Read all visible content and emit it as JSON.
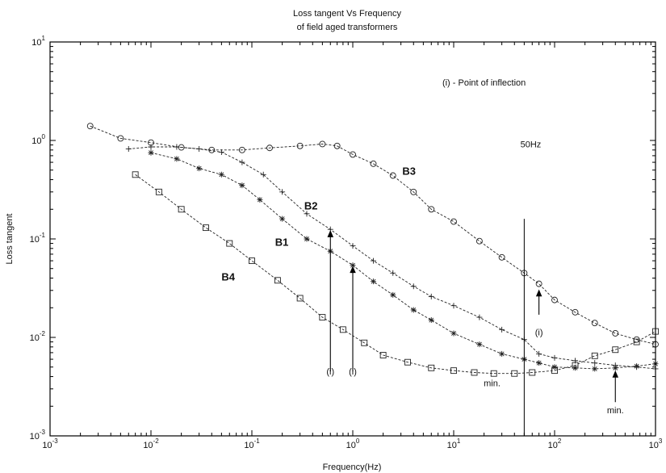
{
  "chart_data": {
    "type": "line",
    "title": "Loss tangent Vs Frequency",
    "subtitle": "of field aged transformers",
    "xlabel": "Frequency(Hz)",
    "ylabel": "Loss tangent",
    "x_scale": "log",
    "y_scale": "log",
    "xlim": [
      0.001,
      1000
    ],
    "ylim": [
      0.001,
      10
    ],
    "x_ticks": [
      0.001,
      0.01,
      0.1,
      1,
      10,
      100,
      1000
    ],
    "y_ticks": [
      0.001,
      0.01,
      0.1,
      1,
      10
    ],
    "x_tick_labels": [
      {
        "base": "10",
        "exp": "-3"
      },
      {
        "base": "10",
        "exp": "-2"
      },
      {
        "base": "10",
        "exp": "-1"
      },
      {
        "base": "10",
        "exp": "0"
      },
      {
        "base": "10",
        "exp": "1"
      },
      {
        "base": "10",
        "exp": "2"
      },
      {
        "base": "10",
        "exp": "3"
      }
    ],
    "y_tick_labels": [
      {
        "base": "10",
        "exp": "-3"
      },
      {
        "base": "10",
        "exp": "-2"
      },
      {
        "base": "10",
        "exp": "-1"
      },
      {
        "base": "10",
        "exp": "0"
      },
      {
        "base": "10",
        "exp": "1"
      }
    ],
    "grid": false,
    "series": [
      {
        "name": "B3",
        "marker": "circle",
        "x": [
          0.0025,
          0.005,
          0.01,
          0.02,
          0.04,
          0.08,
          0.15,
          0.3,
          0.5,
          0.7,
          1.0,
          1.6,
          2.5,
          4,
          6,
          10,
          18,
          30,
          50,
          70,
          100,
          160,
          250,
          400,
          650,
          1000
        ],
        "y": [
          1.4,
          1.05,
          0.95,
          0.85,
          0.8,
          0.8,
          0.84,
          0.88,
          0.92,
          0.88,
          0.72,
          0.58,
          0.44,
          0.3,
          0.2,
          0.15,
          0.095,
          0.065,
          0.045,
          0.035,
          0.024,
          0.018,
          0.014,
          0.011,
          0.0095,
          0.0085
        ]
      },
      {
        "name": "B2",
        "marker": "plus",
        "x": [
          0.006,
          0.01,
          0.018,
          0.03,
          0.05,
          0.08,
          0.13,
          0.2,
          0.35,
          0.6,
          1.0,
          1.6,
          2.5,
          4,
          6,
          10,
          18,
          30,
          50,
          70,
          100,
          160,
          250,
          400,
          650,
          1000
        ],
        "y": [
          0.82,
          0.86,
          0.86,
          0.82,
          0.76,
          0.6,
          0.45,
          0.3,
          0.18,
          0.125,
          0.085,
          0.06,
          0.045,
          0.033,
          0.026,
          0.021,
          0.016,
          0.012,
          0.0095,
          0.0068,
          0.0062,
          0.0058,
          0.0055,
          0.0052,
          0.005,
          0.0048
        ]
      },
      {
        "name": "B1",
        "marker": "star",
        "x": [
          0.01,
          0.018,
          0.03,
          0.05,
          0.08,
          0.12,
          0.2,
          0.35,
          0.6,
          1.0,
          1.6,
          2.5,
          4,
          6,
          10,
          18,
          30,
          50,
          70,
          100,
          160,
          250,
          400,
          650,
          1000
        ],
        "y": [
          0.75,
          0.65,
          0.52,
          0.45,
          0.35,
          0.25,
          0.16,
          0.1,
          0.075,
          0.054,
          0.037,
          0.027,
          0.019,
          0.015,
          0.011,
          0.0085,
          0.0068,
          0.006,
          0.0055,
          0.005,
          0.0049,
          0.0048,
          0.0049,
          0.0051,
          0.0054
        ]
      },
      {
        "name": "B4",
        "marker": "square",
        "x": [
          0.007,
          0.012,
          0.02,
          0.035,
          0.06,
          0.1,
          0.18,
          0.3,
          0.5,
          0.8,
          1.3,
          2,
          3.5,
          6,
          10,
          16,
          25,
          40,
          60,
          100,
          160,
          250,
          400,
          650,
          1000
        ],
        "y": [
          0.45,
          0.3,
          0.2,
          0.13,
          0.09,
          0.06,
          0.038,
          0.025,
          0.016,
          0.012,
          0.0088,
          0.0066,
          0.0056,
          0.0049,
          0.0046,
          0.0044,
          0.0043,
          0.0043,
          0.0044,
          0.0046,
          0.0052,
          0.0065,
          0.0075,
          0.009,
          0.0115
        ]
      }
    ],
    "series_labels": [
      {
        "text": "B3",
        "x": 3.1,
        "y": 0.45
      },
      {
        "text": "B2",
        "x": 0.33,
        "y": 0.2
      },
      {
        "text": "B1",
        "x": 0.17,
        "y": 0.085
      },
      {
        "text": "B4",
        "x": 0.05,
        "y": 0.038
      }
    ],
    "annotations": [
      {
        "text": "(i) - Point of inflection",
        "x": 20,
        "y": 3.6
      },
      {
        "text": "50Hz",
        "x": 58,
        "y": 0.85
      },
      {
        "text": "(i)",
        "x": 0.6,
        "y": 0.0042
      },
      {
        "text": "(i)",
        "x": 1.0,
        "y": 0.0042
      },
      {
        "text": "(i)",
        "x": 70,
        "y": 0.0105
      },
      {
        "text": "min.",
        "x": 24,
        "y": 0.0032
      },
      {
        "text": "min.",
        "x": 400,
        "y": 0.0017
      }
    ],
    "arrows": [
      {
        "x": 0.6,
        "y_from": 0.0045,
        "y_to": 0.12
      },
      {
        "x": 1.0,
        "y_from": 0.0045,
        "y_to": 0.052
      },
      {
        "x": 70,
        "y_from": 0.017,
        "y_to": 0.03
      },
      {
        "x": 400,
        "y_from": 0.0022,
        "y_to": 0.0045
      }
    ],
    "vertical_line": {
      "x": 50,
      "y_from": 0.001,
      "y_to": 0.16
    }
  }
}
